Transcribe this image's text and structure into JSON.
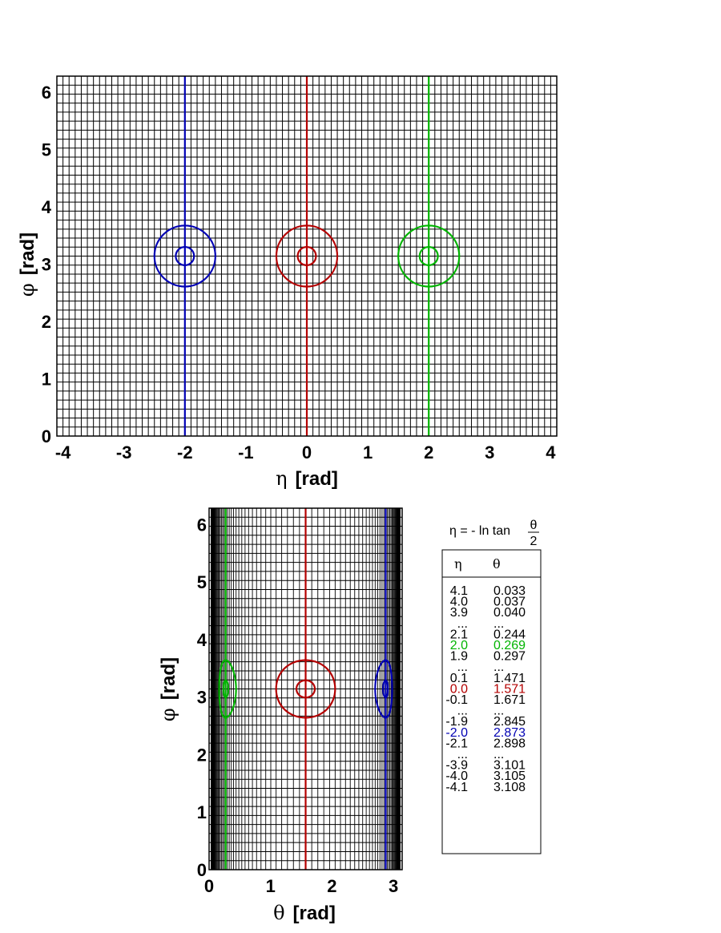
{
  "chart_data": [
    {
      "type": "scatter",
      "panel": "eta-phi",
      "xlabel_symbol": "η",
      "xlabel_unit": "[rad]",
      "ylabel_symbol": "φ",
      "ylabel_unit": "[rad]",
      "xlim": [
        -4.1,
        4.1
      ],
      "ylim": [
        0,
        6.283
      ],
      "xticks": [
        -4,
        -3,
        -2,
        -1,
        0,
        1,
        2,
        3,
        4
      ],
      "yticks": [
        0,
        1,
        2,
        3,
        4,
        5,
        6
      ],
      "grid": {
        "eta_step": 0.1,
        "phi_step": 0.15708
      },
      "series": [
        {
          "color": "#0000b4",
          "eta": -2.0,
          "phi": 3.1416,
          "inner_radius": 0.15,
          "outer_radius": 0.5
        },
        {
          "color": "#b40000",
          "eta": 0.0,
          "phi": 3.1416,
          "inner_radius": 0.15,
          "outer_radius": 0.5
        },
        {
          "color": "#00b400",
          "eta": 2.0,
          "phi": 3.1416,
          "inner_radius": 0.15,
          "outer_radius": 0.5
        }
      ]
    },
    {
      "type": "scatter",
      "panel": "theta-phi",
      "xlabel_symbol": "θ",
      "xlabel_unit": "[rad]",
      "ylabel_symbol": "φ",
      "ylabel_unit": "[rad]",
      "xlim": [
        0,
        3.1416
      ],
      "ylim": [
        0,
        6.283
      ],
      "xticks": [
        0,
        1,
        2,
        3
      ],
      "yticks": [
        0,
        1,
        2,
        3,
        4,
        5,
        6
      ],
      "series": [
        {
          "color": "#0000b4",
          "eta": -2.0,
          "theta": 2.873
        },
        {
          "color": "#b40000",
          "eta": 0.0,
          "theta": 1.571
        },
        {
          "color": "#00b400",
          "eta": 2.0,
          "theta": 0.269
        }
      ]
    }
  ],
  "formula": {
    "lhs": "η = - ln tan",
    "num": "θ",
    "den": "2"
  },
  "table": {
    "headers": [
      "η",
      "θ"
    ],
    "rows": [
      {
        "eta": "4.1",
        "theta": "0.033",
        "color": "#000000"
      },
      {
        "eta": "4.0",
        "theta": "0.037",
        "color": "#000000"
      },
      {
        "eta": "3.9",
        "theta": "0.040",
        "color": "#000000"
      },
      {
        "eta": "...",
        "theta": "...",
        "color": "#000000"
      },
      {
        "eta": "2.1",
        "theta": "0.244",
        "color": "#000000"
      },
      {
        "eta": "2.0",
        "theta": "0.269",
        "color": "#00b400"
      },
      {
        "eta": "1.9",
        "theta": "0.297",
        "color": "#000000"
      },
      {
        "eta": "...",
        "theta": "...",
        "color": "#000000"
      },
      {
        "eta": "0.1",
        "theta": "1.471",
        "color": "#000000"
      },
      {
        "eta": "0.0",
        "theta": "1.571",
        "color": "#b40000"
      },
      {
        "eta": "-0.1",
        "theta": "1.671",
        "color": "#000000"
      },
      {
        "eta": "...",
        "theta": "...",
        "color": "#000000"
      },
      {
        "eta": "-1.9",
        "theta": "2.845",
        "color": "#000000"
      },
      {
        "eta": "-2.0",
        "theta": "2.873",
        "color": "#0000b4"
      },
      {
        "eta": "-2.1",
        "theta": "2.898",
        "color": "#000000"
      },
      {
        "eta": "...",
        "theta": "...",
        "color": "#000000"
      },
      {
        "eta": "-3.9",
        "theta": "3.101",
        "color": "#000000"
      },
      {
        "eta": "-4.0",
        "theta": "3.105",
        "color": "#000000"
      },
      {
        "eta": "-4.1",
        "theta": "3.108",
        "color": "#000000"
      }
    ]
  }
}
